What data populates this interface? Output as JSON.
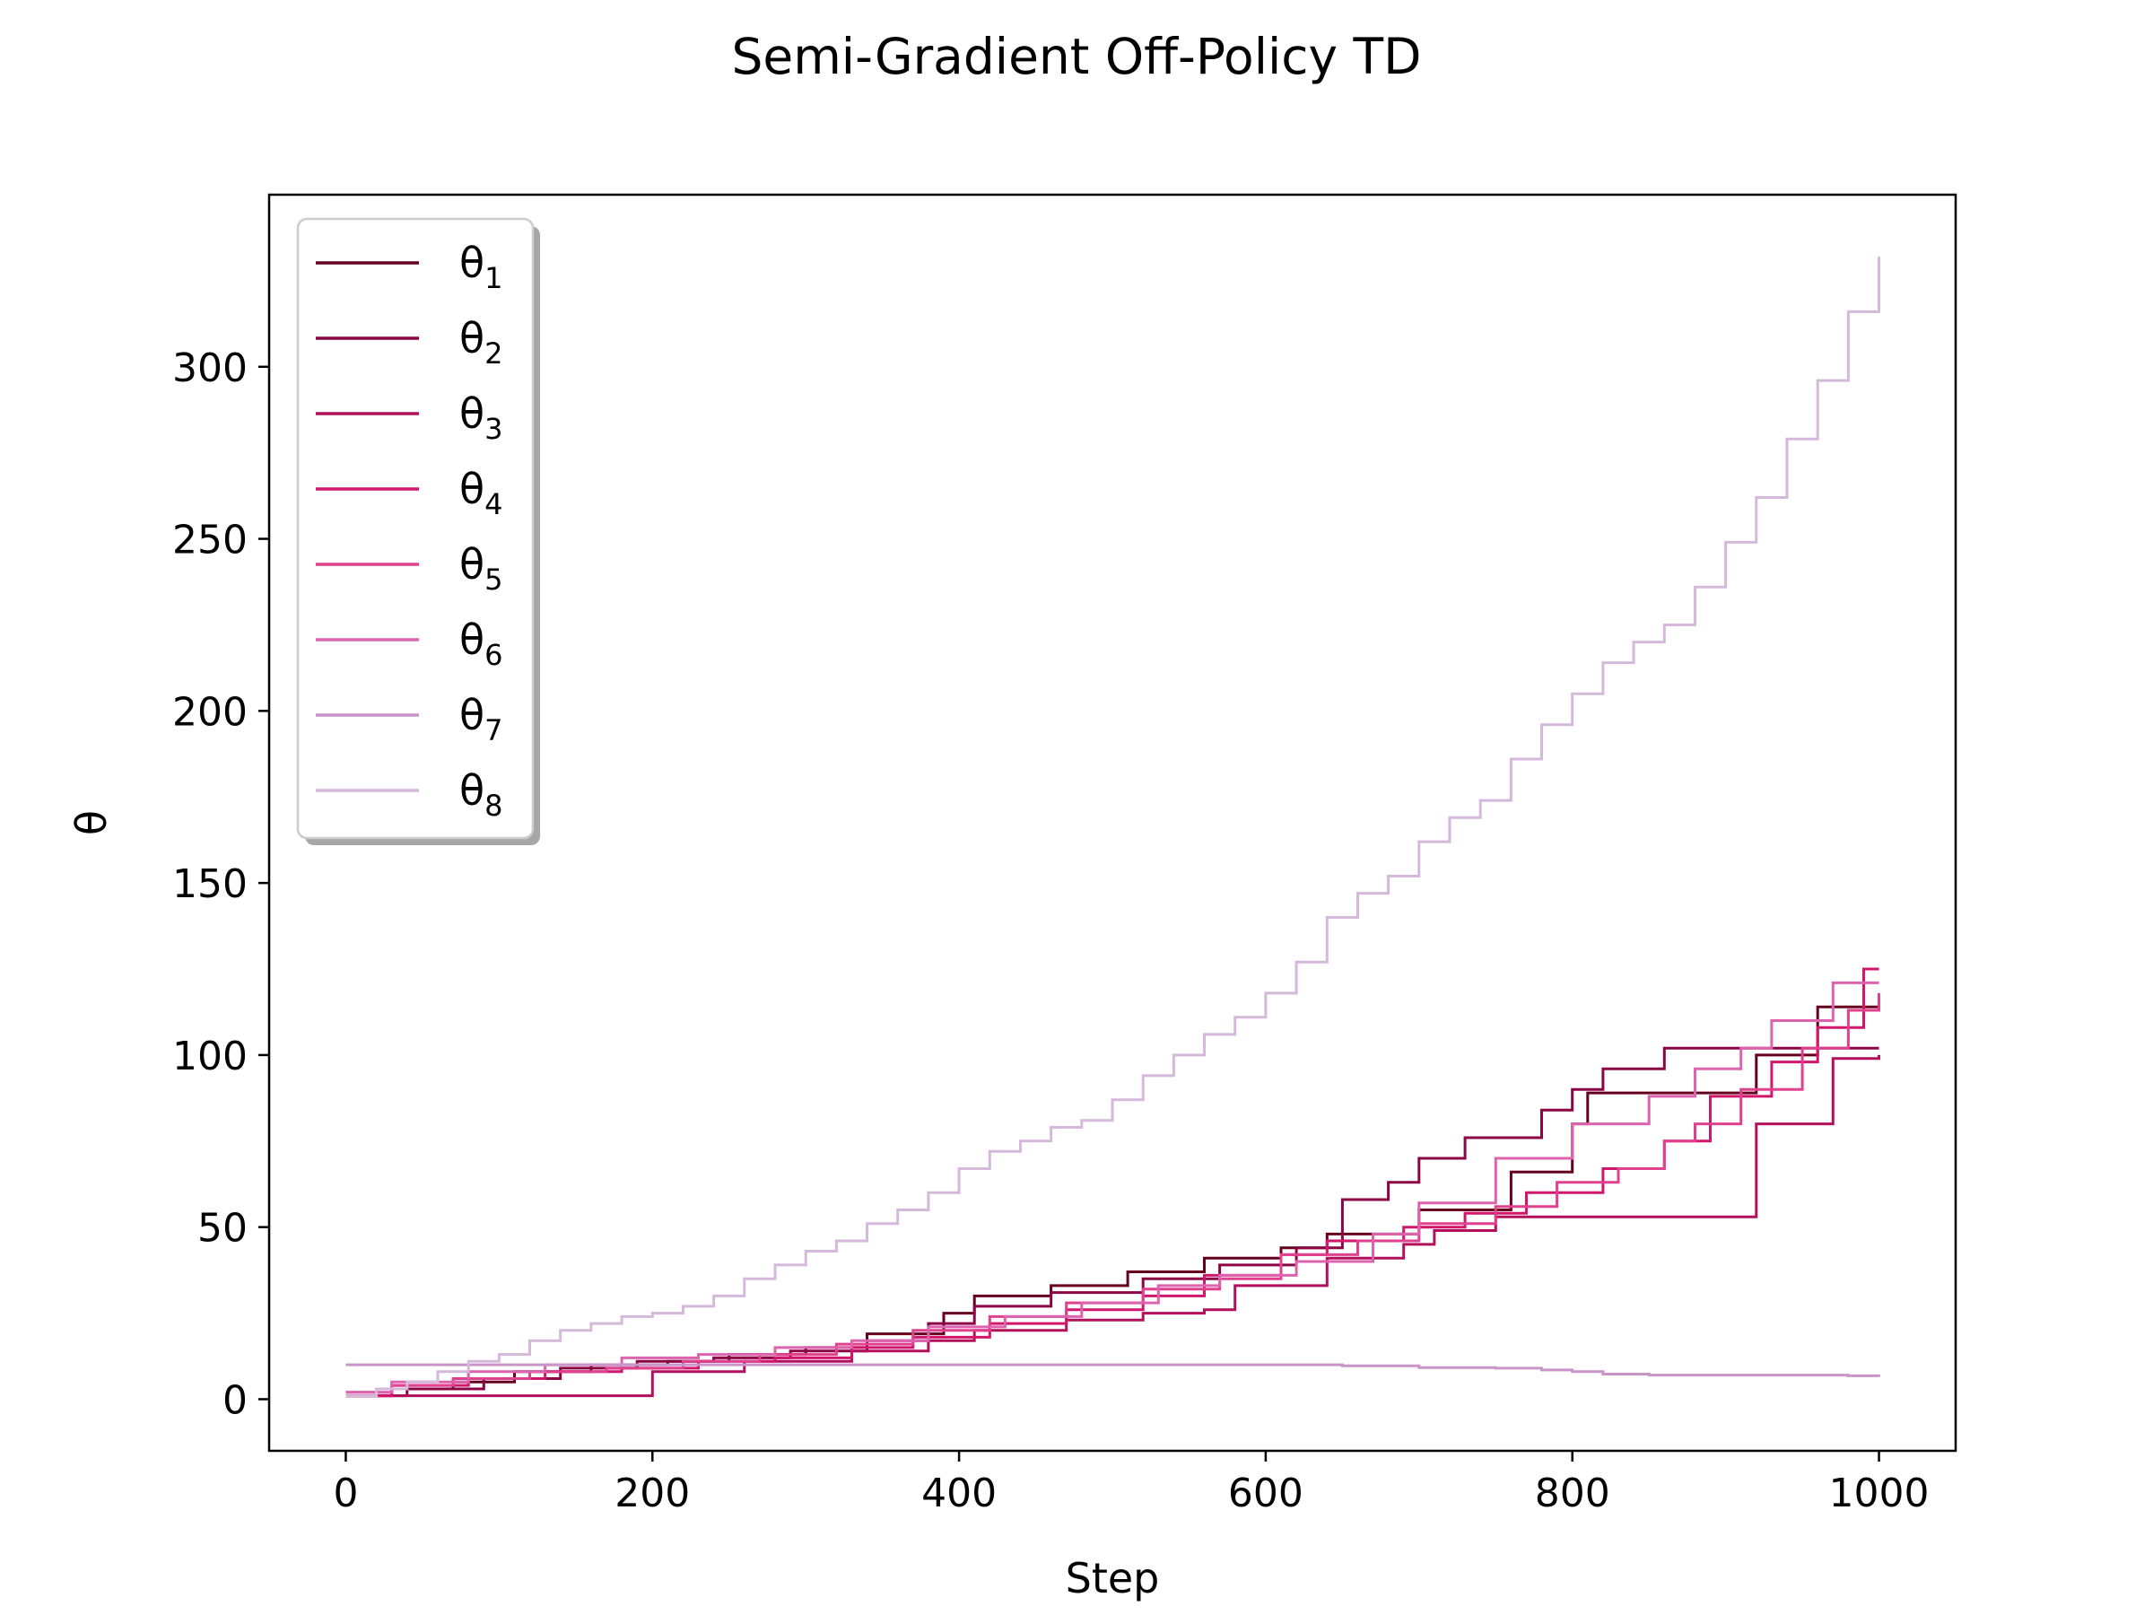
{
  "chart_data": {
    "type": "line",
    "title": "Semi-Gradient Off-Policy TD",
    "xlabel": "Step",
    "ylabel": "θ",
    "xlim": [
      -50,
      1050
    ],
    "ylim": [
      -15,
      350
    ],
    "xticks": [
      0,
      200,
      400,
      600,
      800,
      1000
    ],
    "yticks": [
      0,
      50,
      100,
      150,
      200,
      250,
      300
    ],
    "legend_position": "top-left",
    "series": [
      {
        "name": "θ",
        "subscript": "1",
        "color": "#67001f",
        "x": [
          0,
          30,
          70,
          110,
          160,
          210,
          250,
          300,
          340,
          390,
          410,
          460,
          510,
          560,
          610,
          640,
          700,
          760,
          800,
          810,
          840,
          900,
          920,
          960,
          990,
          1000
        ],
        "y": [
          1,
          3,
          5,
          8,
          10,
          11,
          13,
          15,
          19,
          25,
          30,
          33,
          37,
          41,
          44,
          48,
          55,
          66,
          80,
          89,
          89,
          89,
          100,
          114,
          114,
          114
        ]
      },
      {
        "name": "θ",
        "subscript": "2",
        "color": "#8b0545",
        "x": [
          0,
          40,
          90,
          140,
          190,
          240,
          290,
          340,
          380,
          410,
          460,
          520,
          570,
          620,
          650,
          680,
          700,
          730,
          780,
          800,
          820,
          860,
          890,
          930,
          970,
          1000
        ],
        "y": [
          1,
          3,
          6,
          9,
          11,
          12,
          14,
          17,
          22,
          27,
          31,
          35,
          39,
          44,
          58,
          63,
          70,
          76,
          84,
          90,
          96,
          102,
          102,
          102,
          102,
          102
        ]
      },
      {
        "name": "θ",
        "subscript": "3",
        "color": "#b3105c",
        "x": [
          0,
          20,
          60,
          110,
          170,
          200,
          260,
          330,
          380,
          410,
          470,
          520,
          560,
          580,
          640,
          690,
          710,
          750,
          800,
          850,
          870,
          920,
          940,
          970,
          1000
        ],
        "y": [
          1,
          1,
          1,
          1,
          1,
          8,
          11,
          14,
          17,
          20,
          23,
          25,
          26,
          33,
          41,
          45,
          49,
          53,
          53,
          53,
          53,
          80,
          80,
          99,
          100
        ]
      },
      {
        "name": "θ",
        "subscript": "4",
        "color": "#d1166b",
        "x": [
          0,
          30,
          80,
          130,
          180,
          230,
          280,
          330,
          370,
          420,
          470,
          520,
          560,
          610,
          640,
          690,
          730,
          770,
          820,
          860,
          890,
          930,
          960,
          990,
          1000
        ],
        "y": [
          1,
          4,
          6,
          8,
          9,
          11,
          12,
          15,
          18,
          22,
          26,
          30,
          36,
          42,
          46,
          50,
          54,
          60,
          67,
          75,
          88,
          98,
          108,
          125,
          125
        ]
      },
      {
        "name": "θ",
        "subscript": "5",
        "color": "#e0418f",
        "x": [
          0,
          30,
          70,
          120,
          170,
          220,
          270,
          320,
          370,
          420,
          470,
          520,
          570,
          610,
          660,
          700,
          750,
          790,
          830,
          860,
          880,
          910,
          950,
          980,
          1000
        ],
        "y": [
          2,
          4,
          6,
          8,
          9,
          11,
          13,
          16,
          20,
          24,
          28,
          32,
          35,
          42,
          46,
          51,
          56,
          63,
          67,
          75,
          80,
          90,
          102,
          113,
          118
        ]
      },
      {
        "name": "θ",
        "subscript": "6",
        "color": "#dd63ae",
        "x": [
          0,
          30,
          80,
          130,
          180,
          230,
          280,
          330,
          380,
          430,
          480,
          530,
          570,
          620,
          670,
          700,
          750,
          800,
          850,
          880,
          910,
          930,
          970,
          1000
        ],
        "y": [
          2,
          5,
          8,
          10,
          12,
          13,
          15,
          17,
          21,
          24,
          28,
          33,
          36,
          40,
          48,
          57,
          70,
          80,
          88,
          96,
          102,
          110,
          121,
          121
        ]
      },
      {
        "name": "θ",
        "subscript": "7",
        "color": "#c994c7",
        "x": [
          0,
          200,
          400,
          500,
          600,
          650,
          700,
          750,
          780,
          800,
          820,
          850,
          900,
          950,
          980,
          1000
        ],
        "y": [
          10,
          10,
          10,
          10,
          10,
          9.7,
          9.2,
          9,
          8.5,
          8,
          7.3,
          7,
          7,
          7,
          6.8,
          6.5
        ]
      },
      {
        "name": "θ",
        "subscript": "8",
        "color": "#d4b9da",
        "x": [
          0,
          20,
          40,
          60,
          80,
          100,
          120,
          140,
          160,
          180,
          200,
          220,
          240,
          260,
          280,
          300,
          320,
          340,
          360,
          380,
          400,
          420,
          440,
          460,
          480,
          500,
          520,
          540,
          560,
          580,
          600,
          620,
          640,
          660,
          680,
          700,
          720,
          740,
          760,
          780,
          800,
          820,
          840,
          860,
          880,
          900,
          920,
          940,
          960,
          980,
          1000
        ],
        "y": [
          1,
          3,
          5,
          8,
          11,
          13,
          17,
          20,
          22,
          24,
          25,
          27,
          30,
          35,
          39,
          43,
          46,
          51,
          55,
          60,
          67,
          72,
          75,
          79,
          81,
          87,
          94,
          100,
          106,
          111,
          118,
          127,
          140,
          147,
          152,
          162,
          169,
          174,
          186,
          196,
          205,
          214,
          220,
          225,
          236,
          249,
          262,
          279,
          296,
          316,
          332
        ]
      }
    ]
  }
}
